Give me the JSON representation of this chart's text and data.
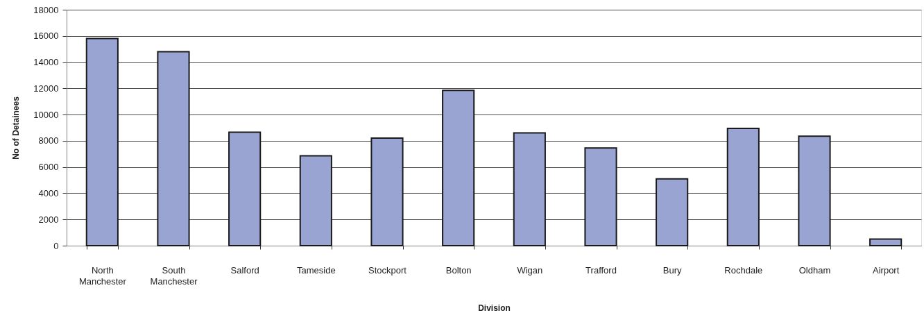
{
  "chart_data": {
    "type": "bar",
    "xlabel": "Division",
    "ylabel": "No of Detainees",
    "categories": [
      "North Manchester",
      "South Manchester",
      "Salford",
      "Tameside",
      "Stockport",
      "Bolton",
      "Wigan",
      "Trafford",
      "Bury",
      "Rochdale",
      "Oldham",
      "Airport"
    ],
    "values": [
      15800,
      14800,
      8650,
      6850,
      8200,
      11850,
      8600,
      7450,
      5100,
      8950,
      8350,
      500
    ],
    "color": "#99a4d3",
    "ylim": [
      0,
      18000
    ],
    "yticks": [
      0,
      2000,
      4000,
      6000,
      8000,
      10000,
      12000,
      14000,
      16000,
      18000
    ],
    "grid": "y"
  }
}
